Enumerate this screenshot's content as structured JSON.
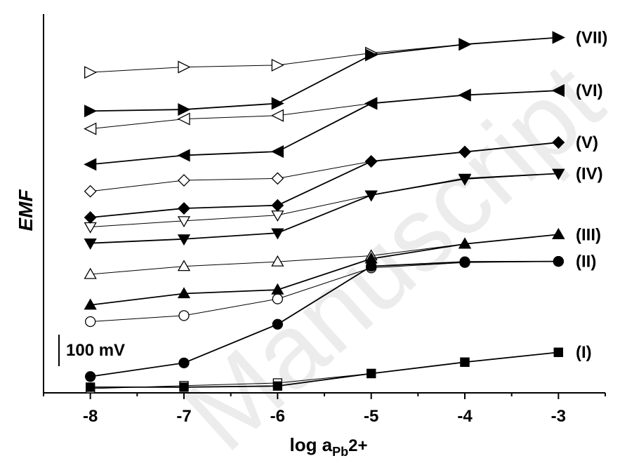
{
  "chart_data": {
    "type": "line",
    "watermark": "Manuscript",
    "ylabel": "EMF",
    "xlabel": {
      "base": "log a",
      "subscript": "Pb",
      "suffix": "2+"
    },
    "xlim": [
      -8.5,
      -2.5
    ],
    "ylim": [
      0,
      1000
    ],
    "x_ticks": [
      "-8",
      "-7",
      "-6",
      "-5",
      "-4",
      "-3"
    ],
    "scale_bar": {
      "label": "100 mV",
      "value": 100
    },
    "grid": false,
    "x": [
      -8,
      -7,
      -6,
      -5,
      -4,
      -3
    ],
    "groups": [
      {
        "label": "(I)",
        "open_marker": "square",
        "filled_marker": "square",
        "open_values": [
          11,
          19,
          26,
          51,
          81,
          107
        ],
        "filled_values": [
          15,
          15,
          18,
          51,
          81,
          107
        ]
      },
      {
        "label": "(II)",
        "open_marker": "circle",
        "filled_marker": "circle",
        "open_values": [
          188,
          204,
          248,
          330,
          344,
          347
        ],
        "filled_values": [
          43,
          79,
          181,
          334,
          346,
          347
        ]
      },
      {
        "label": "(III)",
        "open_marker": "triangle-up",
        "filled_marker": "triangle-up",
        "open_values": [
          313,
          334,
          346,
          362,
          393,
          418
        ],
        "filled_values": [
          232,
          262,
          272,
          354,
          393,
          418
        ]
      },
      {
        "label": "(IV)",
        "open_marker": "triangle-down",
        "filled_marker": "triangle-down",
        "open_values": [
          438,
          454,
          469,
          522,
          564,
          579
        ],
        "filled_values": [
          395,
          406,
          422,
          522,
          566,
          579
        ]
      },
      {
        "label": "(V)",
        "open_marker": "diamond",
        "filled_marker": "diamond",
        "open_values": [
          532,
          561,
          566,
          611,
          636,
          661
        ],
        "filled_values": [
          463,
          487,
          495,
          611,
          636,
          661
        ]
      },
      {
        "label": "(VI)",
        "open_marker": "triangle-left",
        "filled_marker": "triangle-left",
        "open_values": [
          697,
          723,
          732,
          764,
          786,
          798
        ],
        "filled_values": [
          603,
          627,
          637,
          764,
          786,
          798
        ]
      },
      {
        "label": "(VII)",
        "open_marker": "triangle-right",
        "filled_marker": "triangle-right",
        "open_values": [
          846,
          860,
          865,
          897,
          920,
          938
        ],
        "filled_values": [
          744,
          748,
          764,
          892,
          920,
          938
        ]
      }
    ]
  }
}
